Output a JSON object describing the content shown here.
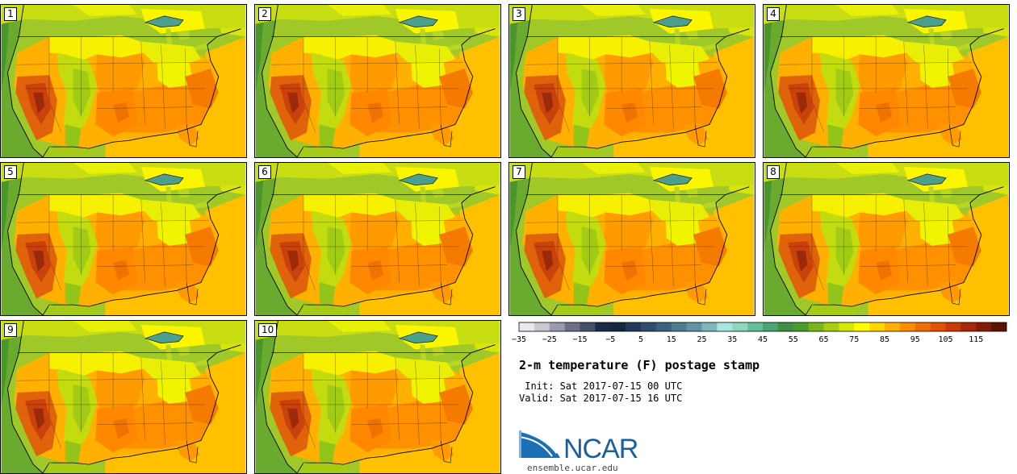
{
  "panels": [
    {
      "label": "1"
    },
    {
      "label": "2"
    },
    {
      "label": "3"
    },
    {
      "label": "4"
    },
    {
      "label": "5"
    },
    {
      "label": "6"
    },
    {
      "label": "7"
    },
    {
      "label": "8"
    },
    {
      "label": "9"
    },
    {
      "label": "10"
    }
  ],
  "colorbar": {
    "colors": [
      "#e8e8ee",
      "#c9c9d3",
      "#9a9aac",
      "#6c6f86",
      "#44506a",
      "#1b2a4a",
      "#142640",
      "#23385a",
      "#2f4c6e",
      "#3d6280",
      "#4e7a92",
      "#5f93a5",
      "#7eb7bd",
      "#a9e6e0",
      "#8fd5c2",
      "#66bf9c",
      "#4aa572",
      "#3d8f45",
      "#4a9d2a",
      "#78b61c",
      "#a7cf10",
      "#d6e805",
      "#fffd00",
      "#ffd600",
      "#ffb000",
      "#ff8c00",
      "#f26d00",
      "#e25200",
      "#c93a06",
      "#a82708",
      "#861a0a",
      "#5e1206"
    ],
    "ticks": [
      "−35",
      "−25",
      "−15",
      "−5",
      "5",
      "15",
      "25",
      "35",
      "45",
      "55",
      "65",
      "75",
      "85",
      "95",
      "105",
      "115"
    ]
  },
  "info": {
    "title": "2-m temperature (F) postage stamp",
    "init": " Init: Sat 2017-07-15 00 UTC",
    "valid": "Valid: Sat 2017-07-15 16 UTC"
  },
  "logo": {
    "text": "NCAR",
    "site": "ensemble.ucar.edu"
  }
}
